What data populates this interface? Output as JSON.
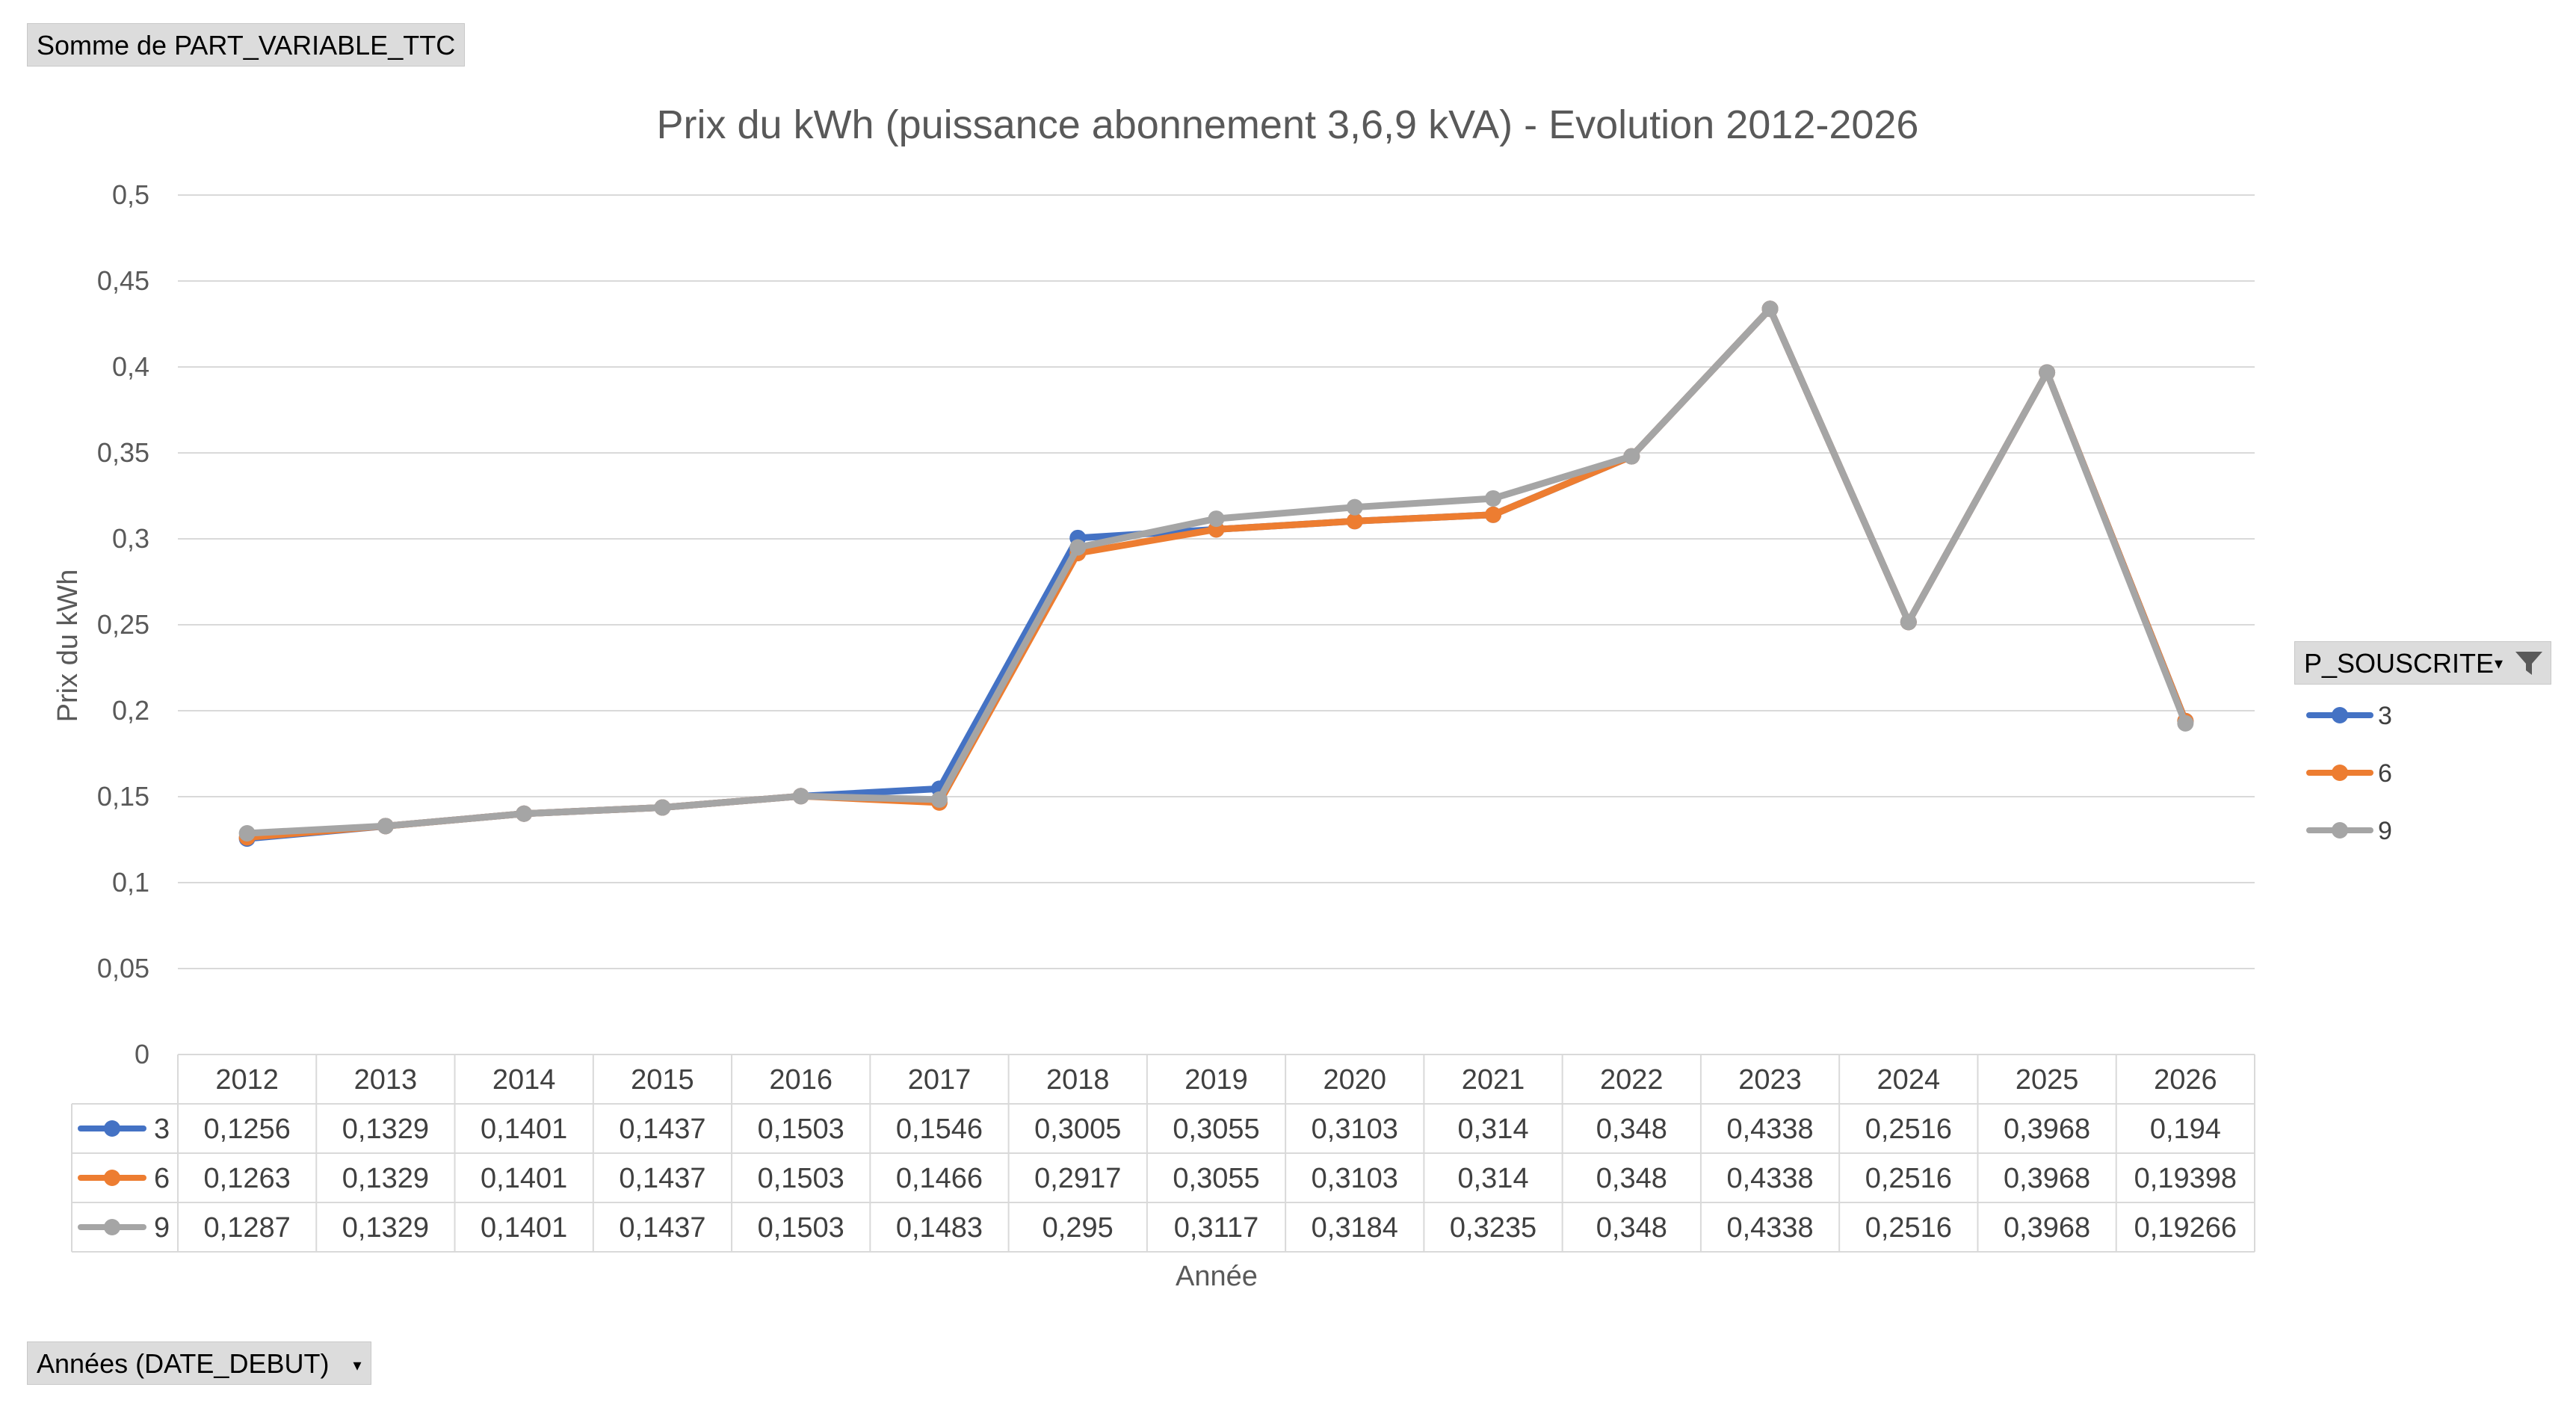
{
  "pivot": {
    "values_field": "Somme de PART_VARIABLE_TTC",
    "rows_field": "Années (DATE_DEBUT)",
    "legend_field": "P_SOUSCRITE"
  },
  "colors": {
    "s3": "#4472C4",
    "s6": "#ED7D31",
    "s9": "#A5A5A5",
    "grid": "#d9d9d9"
  },
  "chart_data": {
    "type": "line",
    "title": "Prix du kWh (puissance abonnement 3,6,9 kVA) - Evolution 2012-2026",
    "xlabel": "Année",
    "ylabel": "Prix du kWh",
    "ylim": [
      0,
      0.5
    ],
    "yticks": [
      "0",
      "0,05",
      "0,1",
      "0,15",
      "0,2",
      "0,25",
      "0,3",
      "0,35",
      "0,4",
      "0,45",
      "0,5"
    ],
    "grid": true,
    "legend_position": "right",
    "categories": [
      "2012",
      "2013",
      "2014",
      "2015",
      "2016",
      "2017",
      "2018",
      "2019",
      "2020",
      "2021",
      "2022",
      "2023",
      "2024",
      "2025",
      "2026"
    ],
    "series": [
      {
        "name": "3",
        "color": "#4472C4",
        "values": [
          0.1256,
          0.1329,
          0.1401,
          0.1437,
          0.1503,
          0.1546,
          0.3005,
          0.3055,
          0.3103,
          0.314,
          0.348,
          0.4338,
          0.2516,
          0.3968,
          0.194
        ],
        "labels": [
          "0,1256",
          "0,1329",
          "0,1401",
          "0,1437",
          "0,1503",
          "0,1546",
          "0,3005",
          "0,3055",
          "0,3103",
          "0,314",
          "0,348",
          "0,4338",
          "0,2516",
          "0,3968",
          "0,194"
        ]
      },
      {
        "name": "6",
        "color": "#ED7D31",
        "values": [
          0.1263,
          0.1329,
          0.1401,
          0.1437,
          0.1503,
          0.1466,
          0.2917,
          0.3055,
          0.3103,
          0.314,
          0.348,
          0.4338,
          0.2516,
          0.3968,
          0.19398
        ],
        "labels": [
          "0,1263",
          "0,1329",
          "0,1401",
          "0,1437",
          "0,1503",
          "0,1466",
          "0,2917",
          "0,3055",
          "0,3103",
          "0,314",
          "0,348",
          "0,4338",
          "0,2516",
          "0,3968",
          "0,19398"
        ]
      },
      {
        "name": "9",
        "color": "#A5A5A5",
        "values": [
          0.1287,
          0.1329,
          0.1401,
          0.1437,
          0.1503,
          0.1483,
          0.295,
          0.3117,
          0.3184,
          0.3235,
          0.348,
          0.4338,
          0.2516,
          0.3968,
          0.19266
        ],
        "labels": [
          "0,1287",
          "0,1329",
          "0,1401",
          "0,1437",
          "0,1503",
          "0,1483",
          "0,295",
          "0,3117",
          "0,3184",
          "0,3235",
          "0,348",
          "0,4338",
          "0,2516",
          "0,3968",
          "0,19266"
        ]
      }
    ]
  }
}
